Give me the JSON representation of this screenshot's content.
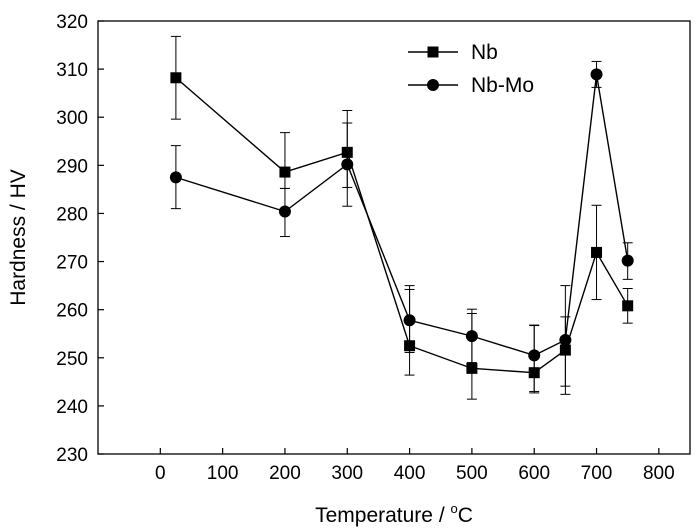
{
  "chart_data": {
    "type": "line",
    "title": "",
    "xlabel": "Temperature / ",
    "xlabel_unit_sup": "o",
    "xlabel_unit": "C",
    "ylabel": "Hardness / HV",
    "xlim": [
      -100,
      850
    ],
    "ylim": [
      230,
      320
    ],
    "x_ticks": [
      "0",
      "100",
      "200",
      "300",
      "400",
      "500",
      "600",
      "700",
      "800"
    ],
    "y_ticks": [
      "230",
      "240",
      "250",
      "260",
      "270",
      "280",
      "290",
      "300",
      "310",
      "320"
    ],
    "grid": false,
    "legend_position": "top-right",
    "x": [
      25,
      200,
      300,
      400,
      500,
      600,
      650,
      700,
      750
    ],
    "series": [
      {
        "name": "Nb",
        "marker": "square",
        "values": [
          308.2,
          288.6,
          292.7,
          252.5,
          247.8,
          246.9,
          251.6,
          271.9,
          260.8
        ],
        "err_low": [
          299.6,
          285.2,
          285.4,
          246.4,
          241.4,
          243.0,
          242.4,
          262.1,
          257.2
        ],
        "err_high": [
          316.8,
          296.8,
          301.4,
          265.0,
          260.1,
          256.8,
          265.0,
          281.7,
          264.4
        ]
      },
      {
        "name": "Nb-Mo",
        "marker": "circle",
        "values": [
          287.5,
          280.4,
          290.2,
          257.8,
          254.5,
          250.5,
          253.7,
          308.9,
          270.2
        ],
        "err_low": [
          281.0,
          275.2,
          281.5,
          251.1,
          249.0,
          242.7,
          244.1,
          306.2,
          266.3
        ],
        "err_high": [
          294.1,
          285.2,
          298.8,
          264.2,
          259.2,
          256.7,
          258.5,
          311.6,
          273.9
        ]
      }
    ]
  }
}
